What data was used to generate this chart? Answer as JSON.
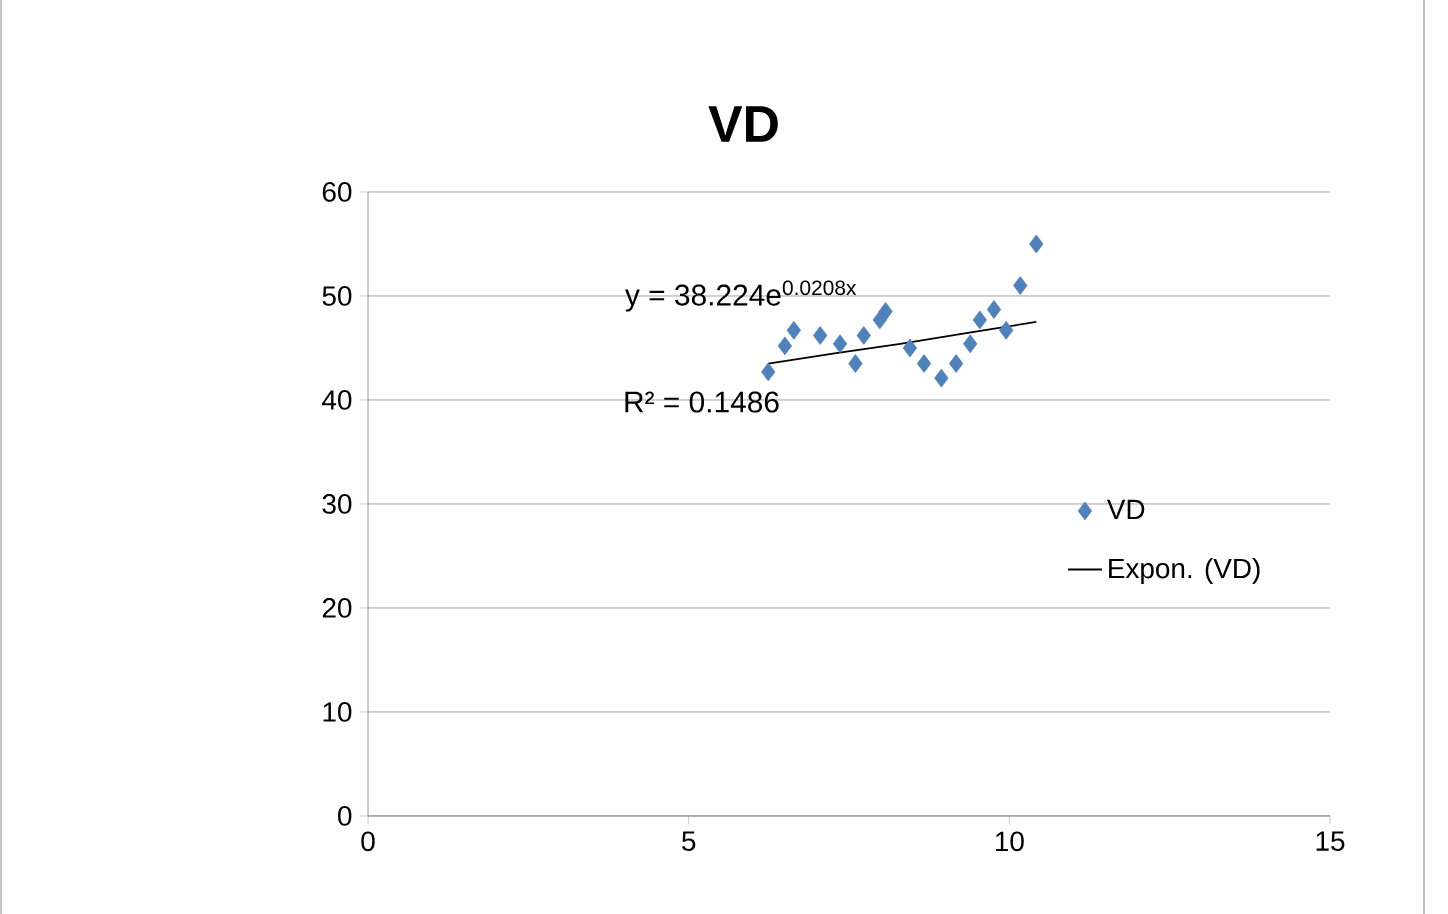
{
  "chart_data": {
    "type": "scatter",
    "title": "VD",
    "xlim": [
      0,
      15
    ],
    "ylim": [
      0,
      60
    ],
    "xticks": [
      0,
      5,
      10,
      15
    ],
    "yticks": [
      0,
      10,
      20,
      30,
      40,
      50,
      60
    ],
    "grid": "y",
    "legend": "right",
    "marker": "diamond",
    "series": [
      {
        "name": "VD",
        "color": "#4f81bd",
        "x": [
          6.24,
          6.5,
          6.64,
          7.05,
          7.36,
          7.6,
          7.73,
          7.98,
          8.07,
          8.45,
          8.67,
          8.94,
          9.17,
          9.39,
          9.54,
          9.76,
          9.92,
          9.95,
          10.17,
          10.42
        ],
        "values": [
          42.7,
          45.2,
          46.7,
          46.2,
          45.4,
          43.5,
          46.2,
          47.7,
          48.5,
          45,
          43.5,
          42.1,
          43.5,
          45.4,
          47.7,
          48.7,
          null,
          46.7,
          51,
          55
        ]
      },
      {
        "name": "Expon. (VD)",
        "type": "line",
        "color": "#000000",
        "marker": "none",
        "line_style": "solid",
        "x": [
          6.24,
          7.3,
          8.3,
          9.4,
          10.42
        ],
        "values": [
          43.5,
          44.5,
          45.4,
          46.5,
          47.5
        ]
      }
    ],
    "annotations": [
      "y = 38.224e$^{0.0208x}$",
      "R² = 0.1486"
    ]
  }
}
